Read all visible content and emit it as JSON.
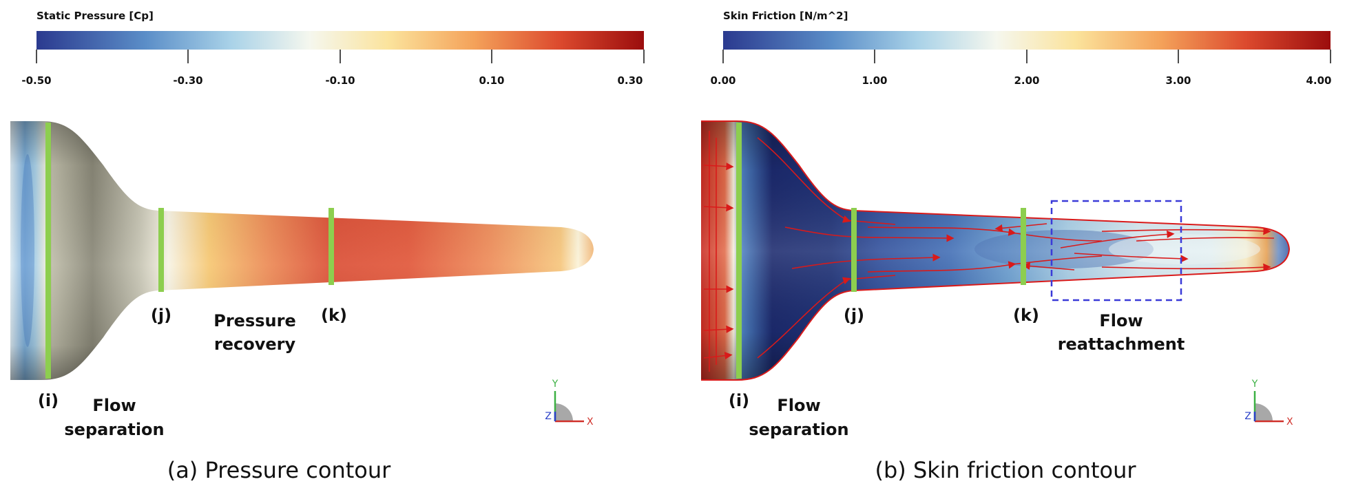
{
  "panel_a": {
    "colorbar": {
      "title": "Static Pressure [Cp]",
      "ticks": [
        "-0.50",
        "-0.30",
        "-0.10",
        "0.10",
        "0.30"
      ]
    },
    "labels": {
      "i": "(i)",
      "j": "(j)",
      "k": "(k)",
      "flow": "Flow",
      "separation": "separation",
      "pressure": "Pressure",
      "recovery": "recovery"
    },
    "axis": {
      "y": "Y",
      "x": "X",
      "z": "Z"
    },
    "caption": "(a) Pressure contour"
  },
  "panel_b": {
    "colorbar": {
      "title": "Skin Friction [N/m^2]",
      "ticks": [
        "0.00",
        "1.00",
        "2.00",
        "3.00",
        "4.00"
      ]
    },
    "labels": {
      "i": "(i)",
      "j": "(j)",
      "k": "(k)",
      "flow": "Flow",
      "separation": "separation",
      "flow2": "Flow",
      "reattachment": "reattachment"
    },
    "axis": {
      "y": "Y",
      "x": "X",
      "z": "Z"
    },
    "caption": "(b) Skin friction contour"
  },
  "colors": {
    "cmap_low": "#2b3a8f",
    "cmap_mid": "#f5f7ee",
    "cmap_high": "#9b0d0d",
    "section_marker": "#8dce4f",
    "streamline": "#d91a1a",
    "reattach_box": "#3a3ad8"
  }
}
